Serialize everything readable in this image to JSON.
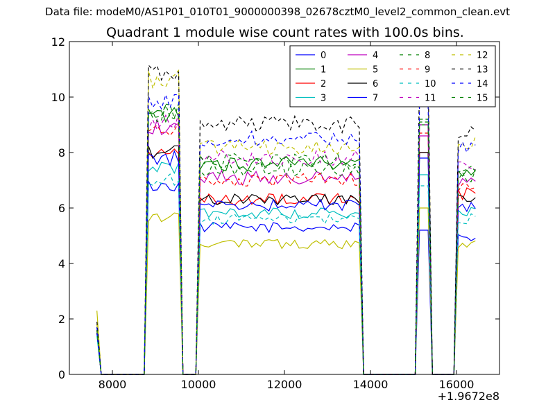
{
  "figure": {
    "data_file_text": "Data file: modeM0/AS1P01_010T01_9000000398_02678cztM0_level2_common_clean.evt"
  },
  "chart_data": {
    "type": "line",
    "title": "Quadrant 1 module wise count rates with 100.0s bins.",
    "xlabel": "",
    "ylabel": "",
    "x_offset_label": "+1.9672e8",
    "xlim": [
      7000,
      17000
    ],
    "ylim": [
      0,
      12
    ],
    "xticks": [
      8000,
      10000,
      12000,
      14000,
      16000
    ],
    "xtick_labels": [
      "8000",
      "10000",
      "12000",
      "14000",
      "16000"
    ],
    "yticks": [
      0,
      2,
      4,
      6,
      8,
      10,
      12
    ],
    "ytick_labels": [
      "0",
      "2",
      "4",
      "6",
      "8",
      "10",
      "12"
    ],
    "grid": false,
    "legend_position": "top-right",
    "legend_columns": 4,
    "segments": [
      {
        "start": 7640,
        "count": 2
      },
      {
        "start": 8840,
        "count": 8
      },
      {
        "start": 10040,
        "count": 38
      },
      {
        "start": 15140,
        "count": 3
      },
      {
        "start": 16040,
        "count": 5
      }
    ],
    "x_step": 100,
    "series": [
      {
        "name": "0",
        "color": "#0000ff",
        "dashed": false,
        "levels": [
          1.5,
          6.8,
          5.3,
          5.2,
          4.9
        ]
      },
      {
        "name": "1",
        "color": "#008000",
        "dashed": false,
        "levels": [
          1.6,
          9.3,
          7.6,
          9.0,
          7.3
        ]
      },
      {
        "name": "2",
        "color": "#ff0000",
        "dashed": false,
        "levels": [
          1.5,
          8.0,
          6.3,
          8.0,
          6.5
        ]
      },
      {
        "name": "3",
        "color": "#00bfbf",
        "dashed": false,
        "levels": [
          1.4,
          7.4,
          5.8,
          7.2,
          5.9
        ]
      },
      {
        "name": "4",
        "color": "#bf00bf",
        "dashed": false,
        "levels": [
          1.6,
          8.9,
          7.1,
          8.6,
          6.9
        ]
      },
      {
        "name": "5",
        "color": "#bfbf00",
        "dashed": false,
        "levels": [
          2.3,
          5.7,
          4.7,
          6.0,
          4.7
        ]
      },
      {
        "name": "6",
        "color": "#000000",
        "dashed": false,
        "levels": [
          1.5,
          8.0,
          6.3,
          8.0,
          6.4
        ]
      },
      {
        "name": "7",
        "color": "#0000ff",
        "dashed": false,
        "levels": [
          1.5,
          7.8,
          6.1,
          7.8,
          6.0
        ]
      },
      {
        "name": "8",
        "color": "#008000",
        "dashed": true,
        "levels": [
          1.7,
          9.5,
          7.4,
          9.2,
          7.3
        ]
      },
      {
        "name": "9",
        "color": "#ff0000",
        "dashed": true,
        "levels": [
          1.6,
          8.8,
          7.0,
          8.7,
          6.8
        ]
      },
      {
        "name": "10",
        "color": "#00bfbf",
        "dashed": true,
        "levels": [
          1.4,
          7.0,
          5.6,
          6.8,
          5.6
        ]
      },
      {
        "name": "11",
        "color": "#bf00bf",
        "dashed": true,
        "levels": [
          1.6,
          9.1,
          7.8,
          9.0,
          7.5
        ]
      },
      {
        "name": "12",
        "color": "#bfbf00",
        "dashed": true,
        "levels": [
          1.8,
          10.6,
          8.2,
          10.4,
          8.3
        ]
      },
      {
        "name": "13",
        "color": "#000000",
        "dashed": true,
        "levels": [
          1.9,
          10.9,
          9.0,
          10.8,
          8.7
        ]
      },
      {
        "name": "14",
        "color": "#0000ff",
        "dashed": true,
        "levels": [
          1.7,
          9.9,
          8.5,
          9.7,
          8.1
        ]
      },
      {
        "name": "15",
        "color": "#008000",
        "dashed": true,
        "levels": [
          1.6,
          9.4,
          7.7,
          9.1,
          7.2
        ]
      }
    ]
  }
}
